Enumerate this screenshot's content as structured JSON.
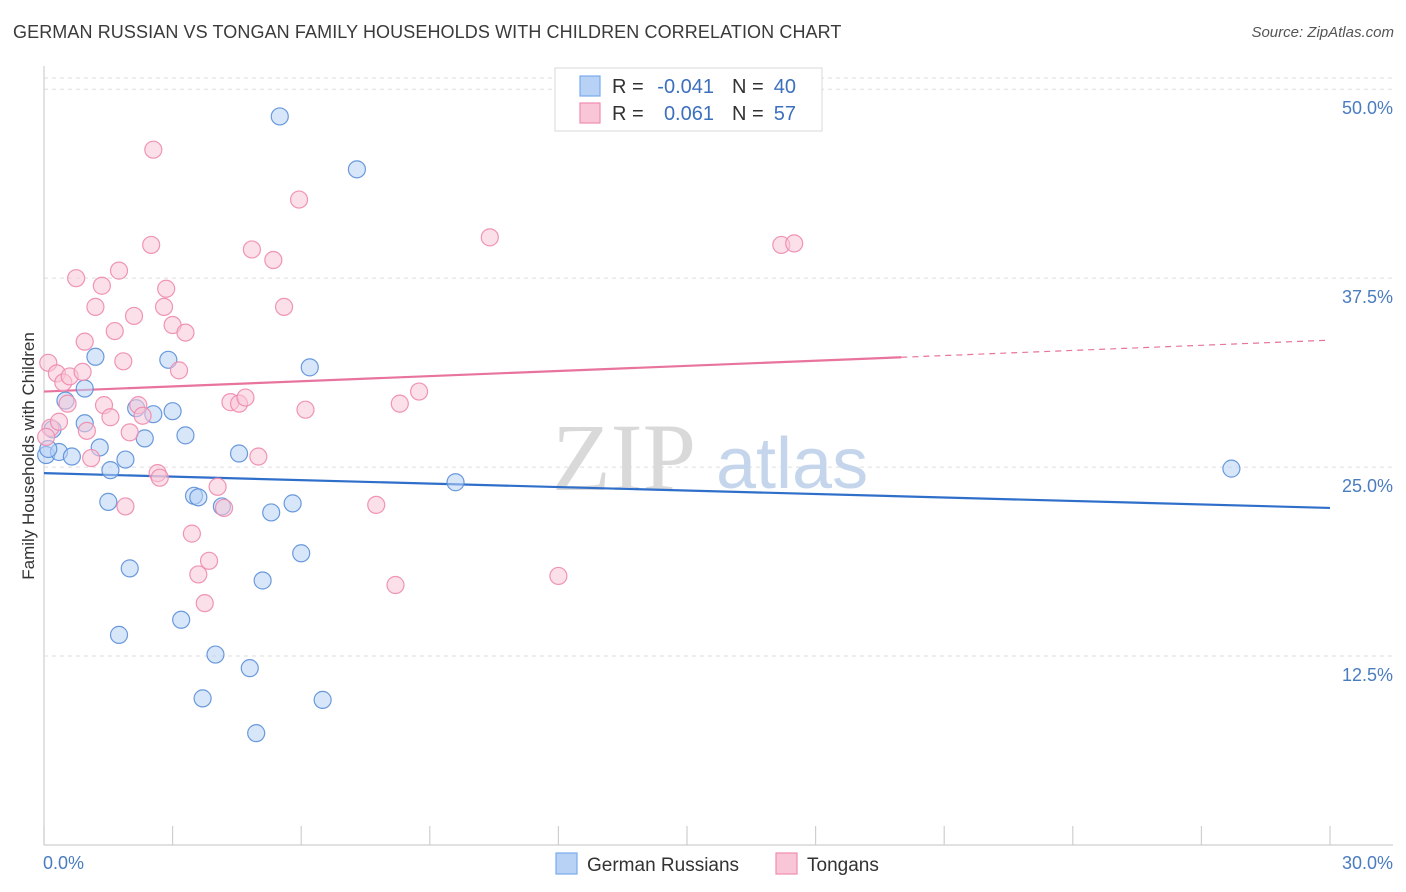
{
  "title": "GERMAN RUSSIAN VS TONGAN FAMILY HOUSEHOLDS WITH CHILDREN CORRELATION CHART",
  "source": "Source: ZipAtlas.com",
  "watermark": {
    "zip": "ZIP",
    "atlas": "atlas"
  },
  "legend": {
    "rows": [
      {
        "r_label": "R =",
        "r_value": "-0.041",
        "n_label": "N =",
        "n_value": "40",
        "color": "#7aaaee",
        "fill": "#b8d2f5"
      },
      {
        "r_label": "R =",
        "r_value": "0.061",
        "n_label": "N =",
        "n_value": "57",
        "color": "#f08cb0",
        "fill": "#f9c6d7"
      }
    ]
  },
  "chart_data": {
    "type": "scatter",
    "title": "GERMAN RUSSIAN VS TONGAN FAMILY HOUSEHOLDS WITH CHILDREN CORRELATION CHART",
    "xlabel": "",
    "ylabel": "Family Households with Children",
    "xlim": [
      0,
      30
    ],
    "ylim": [
      0,
      52
    ],
    "x_tick_labels": {
      "min": "0.0%",
      "max": "30.0%"
    },
    "y_ticks": [
      {
        "value": 12.5,
        "label": "12.5%"
      },
      {
        "value": 25.0,
        "label": "25.0%"
      },
      {
        "value": 37.5,
        "label": "37.5%"
      },
      {
        "value": 50.0,
        "label": "50.0%"
      }
    ],
    "series": [
      {
        "name": "German Russians",
        "color": "#5b8fd8",
        "fill": "#b8d2f5",
        "trend": {
          "x0": 0,
          "y0": 24.6,
          "x1": 30,
          "y1": 22.3,
          "color": "#2f6fca",
          "dash_from": null
        },
        "points": [
          [
            0.05,
            25.8
          ],
          [
            0.2,
            27.5
          ],
          [
            0.35,
            26.0
          ],
          [
            0.5,
            29.4
          ],
          [
            0.65,
            25.7
          ],
          [
            0.95,
            30.2
          ],
          [
            0.95,
            27.9
          ],
          [
            1.2,
            32.3
          ],
          [
            1.3,
            26.3
          ],
          [
            1.5,
            22.7
          ],
          [
            1.55,
            24.8
          ],
          [
            1.75,
            13.9
          ],
          [
            1.9,
            25.5
          ],
          [
            2.0,
            18.3
          ],
          [
            2.15,
            28.9
          ],
          [
            2.35,
            26.9
          ],
          [
            2.55,
            28.5
          ],
          [
            2.9,
            32.1
          ],
          [
            3.0,
            28.7
          ],
          [
            3.2,
            14.9
          ],
          [
            3.3,
            27.1
          ],
          [
            3.5,
            23.1
          ],
          [
            3.6,
            23.0
          ],
          [
            3.7,
            9.7
          ],
          [
            4.0,
            12.6
          ],
          [
            4.15,
            22.4
          ],
          [
            4.55,
            25.9
          ],
          [
            4.8,
            11.7
          ],
          [
            4.95,
            7.4
          ],
          [
            5.1,
            17.5
          ],
          [
            5.3,
            22.0
          ],
          [
            5.5,
            48.2
          ],
          [
            5.8,
            22.6
          ],
          [
            6.0,
            19.3
          ],
          [
            6.2,
            31.6
          ],
          [
            6.5,
            9.6
          ],
          [
            7.3,
            44.7
          ],
          [
            9.6,
            24.0
          ],
          [
            27.7,
            24.9
          ],
          [
            0.1,
            26.2
          ]
        ]
      },
      {
        "name": "Tongans",
        "color": "#ee8aae",
        "fill": "#f9c6d7",
        "trend": {
          "x0": 0,
          "y0": 30.0,
          "x1": 30,
          "y1": 33.4,
          "color": "#e8739d",
          "dash_from": 20
        },
        "points": [
          [
            0.1,
            31.9
          ],
          [
            0.15,
            27.6
          ],
          [
            0.3,
            31.2
          ],
          [
            0.45,
            30.6
          ],
          [
            0.55,
            29.2
          ],
          [
            0.6,
            31.0
          ],
          [
            0.75,
            37.5
          ],
          [
            0.9,
            31.3
          ],
          [
            0.95,
            33.3
          ],
          [
            1.0,
            27.4
          ],
          [
            1.1,
            25.6
          ],
          [
            1.2,
            35.6
          ],
          [
            1.35,
            37.0
          ],
          [
            1.4,
            29.1
          ],
          [
            1.55,
            28.3
          ],
          [
            1.65,
            34.0
          ],
          [
            1.75,
            38.0
          ],
          [
            1.85,
            32.0
          ],
          [
            1.9,
            22.4
          ],
          [
            2.0,
            27.3
          ],
          [
            2.1,
            35.0
          ],
          [
            2.2,
            29.1
          ],
          [
            2.3,
            28.4
          ],
          [
            2.5,
            39.7
          ],
          [
            2.55,
            46.0
          ],
          [
            2.65,
            24.6
          ],
          [
            2.7,
            24.3
          ],
          [
            2.8,
            35.6
          ],
          [
            2.85,
            36.8
          ],
          [
            3.0,
            34.4
          ],
          [
            3.15,
            31.4
          ],
          [
            3.3,
            33.9
          ],
          [
            3.45,
            20.6
          ],
          [
            3.6,
            17.9
          ],
          [
            3.75,
            16.0
          ],
          [
            3.85,
            18.8
          ],
          [
            4.05,
            23.7
          ],
          [
            4.2,
            22.3
          ],
          [
            4.35,
            29.3
          ],
          [
            4.55,
            29.2
          ],
          [
            4.7,
            29.6
          ],
          [
            4.85,
            39.4
          ],
          [
            5.0,
            25.7
          ],
          [
            5.35,
            38.7
          ],
          [
            5.6,
            35.6
          ],
          [
            5.95,
            42.7
          ],
          [
            6.1,
            28.8
          ],
          [
            7.75,
            22.5
          ],
          [
            8.2,
            17.2
          ],
          [
            8.3,
            29.2
          ],
          [
            8.75,
            30.0
          ],
          [
            10.4,
            40.2
          ],
          [
            12.0,
            17.8
          ],
          [
            17.2,
            39.7
          ],
          [
            17.5,
            39.8
          ],
          [
            0.35,
            28.0
          ],
          [
            0.05,
            27.0
          ]
        ]
      }
    ]
  }
}
